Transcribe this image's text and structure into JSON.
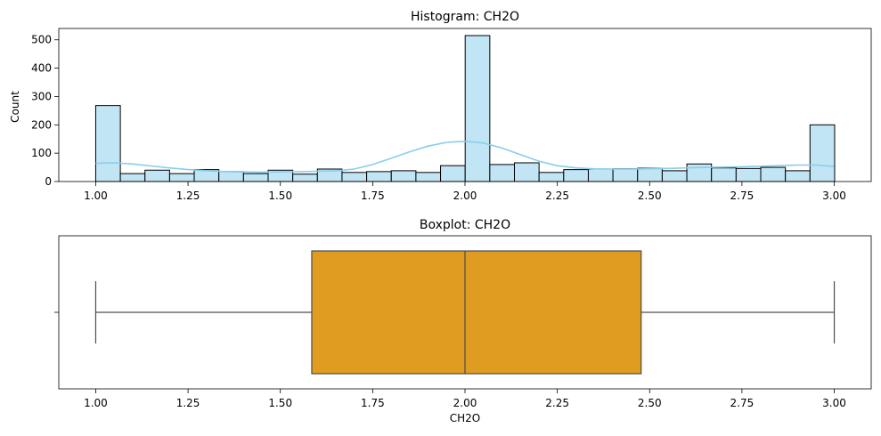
{
  "colors": {
    "hist_fill": "#c2e5f5",
    "hist_edge": "#000000",
    "kde_line": "#87ceeb",
    "box_fill": "#e09c20",
    "box_edge": "#4d4d4d"
  },
  "chart_data": [
    {
      "type": "bar",
      "subtype": "histogram",
      "title": "Histogram: CH2O",
      "xlabel": "",
      "ylabel": "Count",
      "xlim": [
        0.9,
        3.1
      ],
      "ylim": [
        0,
        540
      ],
      "xticks": [
        1.0,
        1.25,
        1.5,
        1.75,
        2.0,
        2.25,
        2.5,
        2.75,
        3.0
      ],
      "xtick_labels": [
        "1.00",
        "1.25",
        "1.50",
        "1.75",
        "2.00",
        "2.25",
        "2.50",
        "2.75",
        "3.00"
      ],
      "yticks": [
        0,
        100,
        200,
        300,
        400,
        500
      ],
      "ytick_labels": [
        "0",
        "100",
        "200",
        "300",
        "400",
        "500"
      ],
      "bin_start": 1.0,
      "bin_width": 0.0667,
      "values": [
        268,
        28,
        40,
        28,
        42,
        35,
        28,
        40,
        26,
        44,
        32,
        35,
        38,
        32,
        56,
        515,
        60,
        66,
        32,
        42,
        44,
        45,
        47,
        38,
        62,
        48,
        46,
        50,
        38,
        200
      ],
      "kde": {
        "x": [
          1.0,
          1.05,
          1.1,
          1.15,
          1.2,
          1.25,
          1.3,
          1.35,
          1.4,
          1.45,
          1.5,
          1.55,
          1.6,
          1.65,
          1.7,
          1.75,
          1.8,
          1.85,
          1.9,
          1.95,
          2.0,
          2.05,
          2.1,
          2.15,
          2.2,
          2.25,
          2.3,
          2.35,
          2.4,
          2.45,
          2.5,
          2.55,
          2.6,
          2.65,
          2.7,
          2.75,
          2.8,
          2.85,
          2.9,
          2.95,
          3.0
        ],
        "y": [
          64,
          66,
          62,
          55,
          48,
          42,
          38,
          35,
          34,
          33,
          34,
          35,
          36,
          38,
          44,
          60,
          82,
          105,
          125,
          138,
          142,
          136,
          118,
          95,
          72,
          56,
          48,
          45,
          44,
          44,
          45,
          46,
          48,
          50,
          51,
          52,
          54,
          56,
          58,
          58,
          53
        ]
      }
    },
    {
      "type": "box",
      "title": "Boxplot: CH2O",
      "xlabel": "CH2O",
      "ylabel": "",
      "xlim": [
        0.9,
        3.1
      ],
      "xticks": [
        1.0,
        1.25,
        1.5,
        1.75,
        2.0,
        2.25,
        2.5,
        2.75,
        3.0
      ],
      "xtick_labels": [
        "1.00",
        "1.25",
        "1.50",
        "1.75",
        "2.00",
        "2.25",
        "2.50",
        "2.75",
        "3.00"
      ],
      "whisker_low": 1.0,
      "q1": 1.585,
      "median": 2.0,
      "q3": 2.477,
      "whisker_high": 3.0
    }
  ]
}
